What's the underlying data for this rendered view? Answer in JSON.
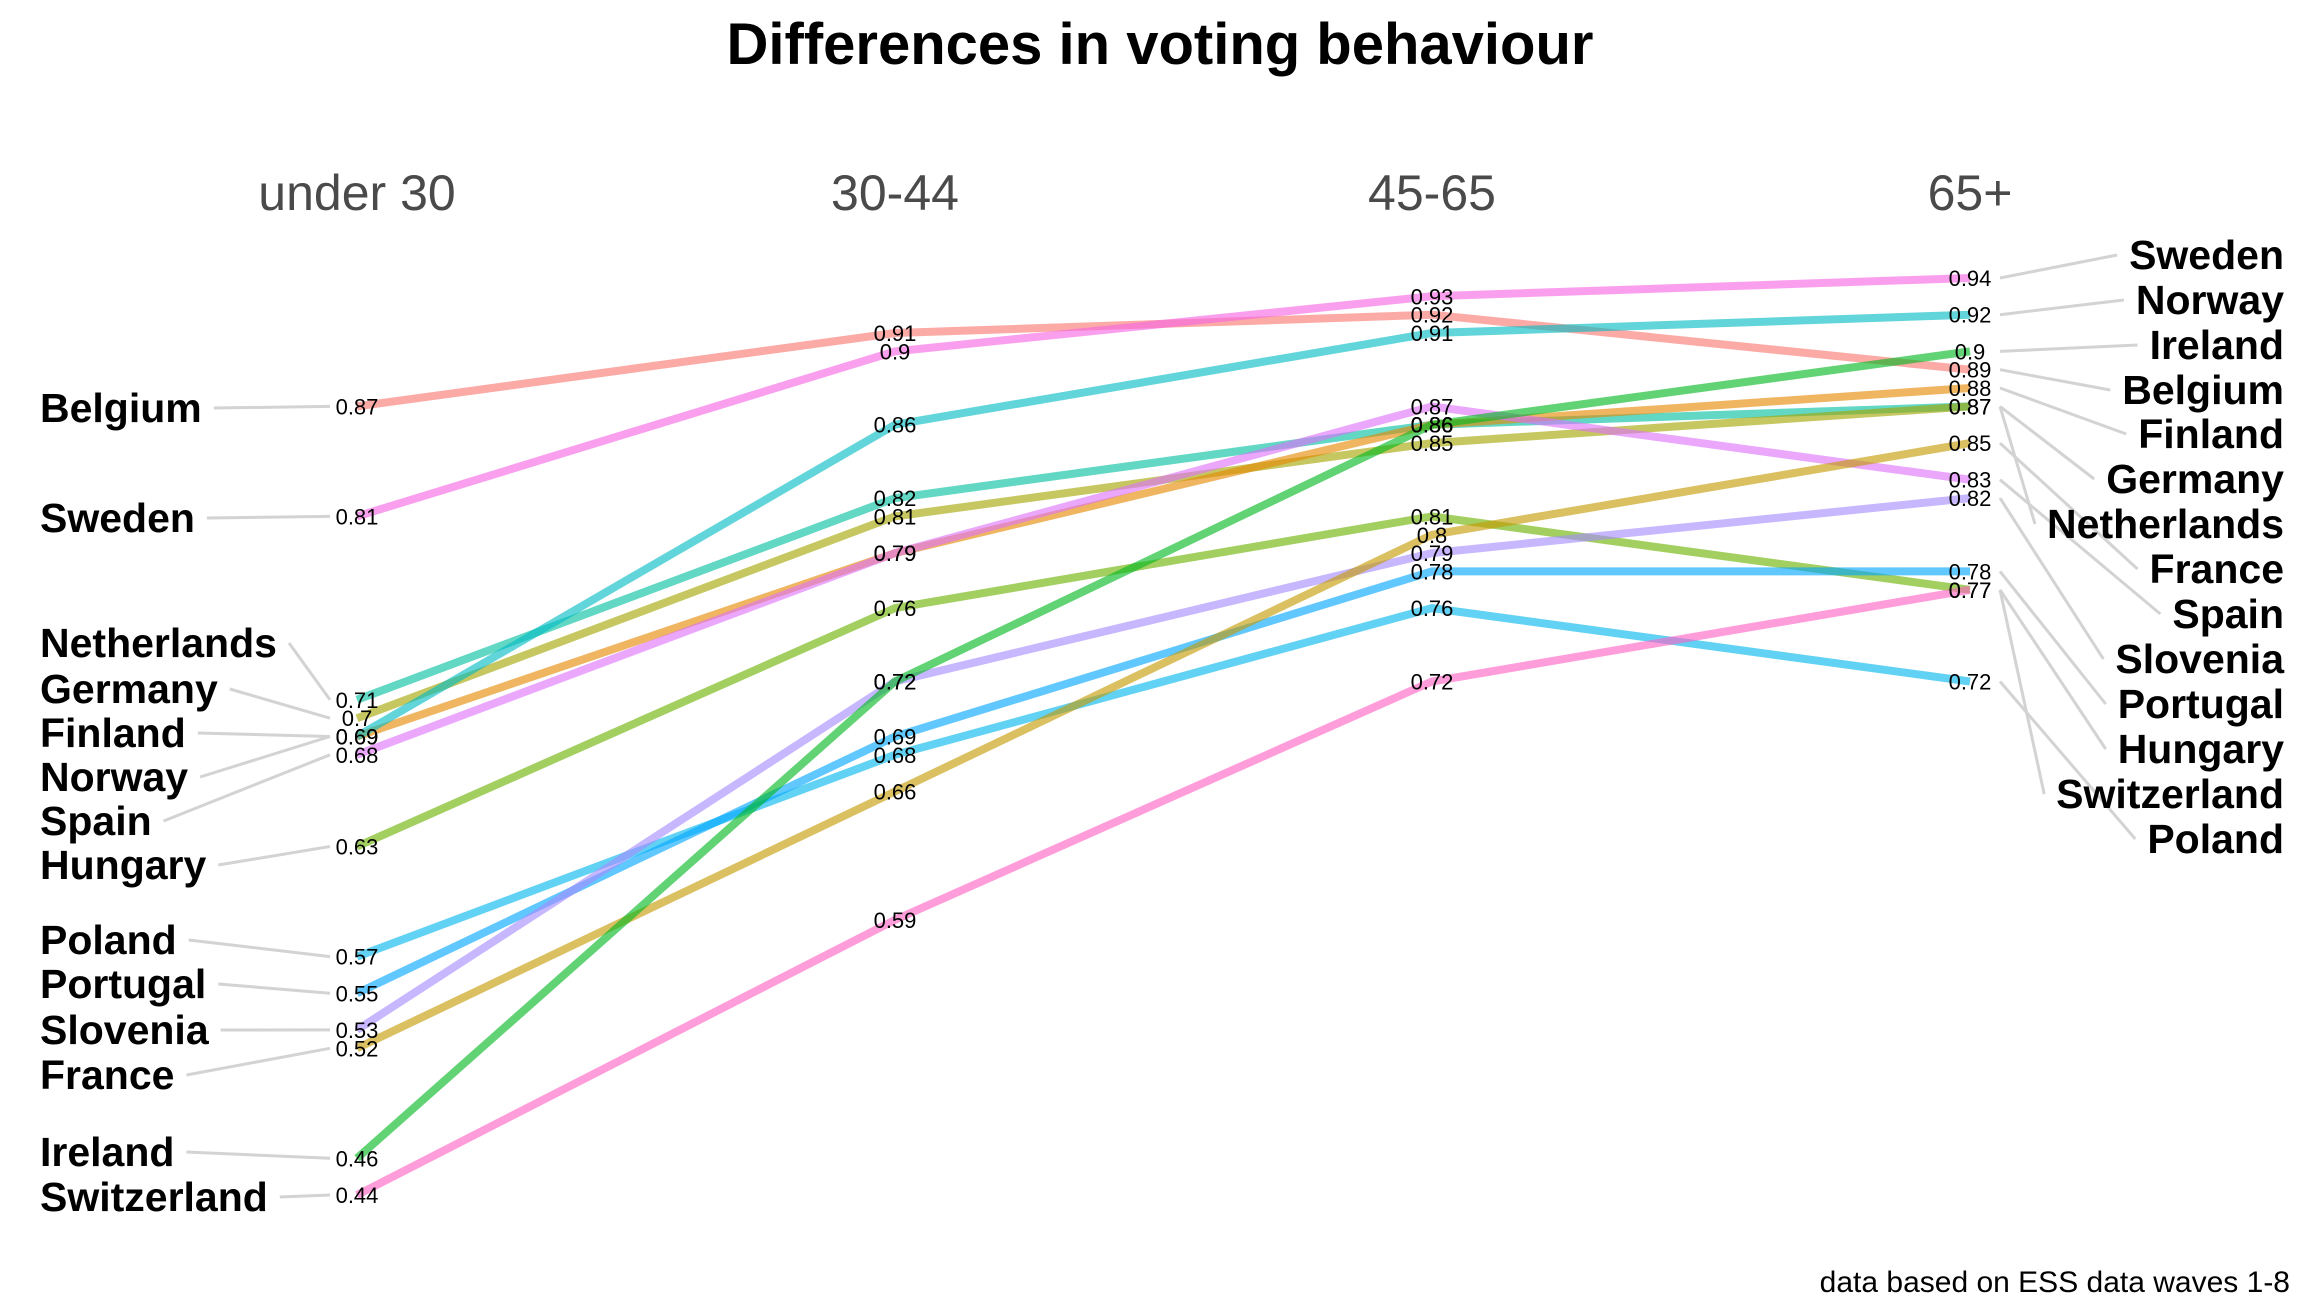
{
  "chart_data": {
    "type": "line",
    "title": "Differences in voting behaviour",
    "categories": [
      "under 30",
      "30-44",
      "45-65",
      "65+"
    ],
    "caption": "data based on ESS data waves 1-8",
    "legend": "none",
    "grid": false,
    "ylim": [
      0.42,
      0.96
    ],
    "series": [
      {
        "name": "Belgium",
        "color": "#F8766D",
        "values": [
          0.87,
          0.91,
          0.92,
          0.89
        ]
      },
      {
        "name": "Sweden",
        "color": "#F564E3",
        "values": [
          0.81,
          0.9,
          0.93,
          0.94
        ]
      },
      {
        "name": "Netherlands",
        "color": "#00BFA0",
        "values": [
          0.71,
          0.82,
          0.86,
          0.87
        ]
      },
      {
        "name": "Germany",
        "color": "#A3A500",
        "values": [
          0.7,
          0.81,
          0.85,
          0.87
        ]
      },
      {
        "name": "Finland",
        "color": "#E58700",
        "values": [
          0.69,
          0.79,
          0.86,
          0.88
        ]
      },
      {
        "name": "Norway",
        "color": "#00BCC4",
        "values": [
          0.69,
          0.86,
          0.91,
          0.92
        ]
      },
      {
        "name": "Spain",
        "color": "#DD71FA",
        "values": [
          0.68,
          0.79,
          0.87,
          0.83
        ]
      },
      {
        "name": "Hungary",
        "color": "#6BB100",
        "values": [
          0.63,
          0.76,
          0.81,
          0.77
        ]
      },
      {
        "name": "Poland",
        "color": "#00B6EB",
        "values": [
          0.57,
          0.68,
          0.76,
          0.72
        ]
      },
      {
        "name": "Portugal",
        "color": "#00A5FF",
        "values": [
          0.55,
          0.69,
          0.78,
          0.78
        ]
      },
      {
        "name": "Slovenia",
        "color": "#A58AFF",
        "values": [
          0.53,
          0.72,
          0.79,
          0.82
        ]
      },
      {
        "name": "France",
        "color": "#C49A00",
        "values": [
          0.52,
          0.66,
          0.8,
          0.85
        ]
      },
      {
        "name": "Ireland",
        "color": "#00B81F",
        "values": [
          0.46,
          0.72,
          0.86,
          0.9
        ]
      },
      {
        "name": "Switzerland",
        "color": "#FF61C3",
        "values": [
          0.44,
          0.59,
          0.72,
          0.77
        ]
      }
    ],
    "left_label_order": [
      "Belgium",
      "Sweden",
      "Netherlands",
      "Germany",
      "Finland",
      "Norway",
      "Spain",
      "Hungary",
      "Poland",
      "Portugal",
      "Slovenia",
      "France",
      "Ireland",
      "Switzerland"
    ],
    "right_label_order": [
      "Sweden",
      "Norway",
      "Ireland",
      "Belgium",
      "Finland",
      "Germany",
      "Netherlands",
      "France",
      "Spain",
      "Slovenia",
      "Portugal",
      "Hungary",
      "Switzerland",
      "Poland"
    ]
  }
}
